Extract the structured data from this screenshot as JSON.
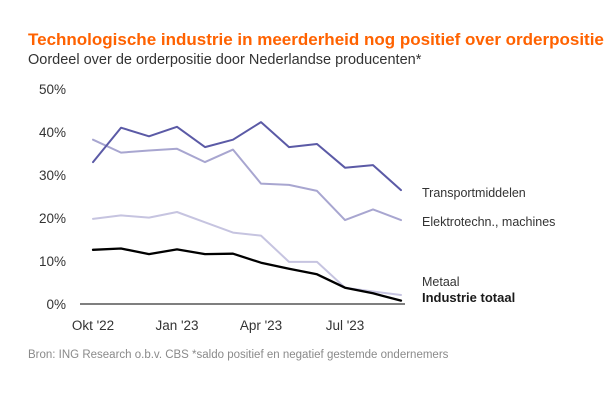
{
  "header": {
    "title": "Technologische industrie in meerderheid nog positief over orderpositie",
    "subtitle": "Oordeel over de orderpositie door Nederlandse producenten*"
  },
  "footer": {
    "source": "Bron: ING Research o.b.v. CBS   *saldo positief en negatief gestemde ondernemers"
  },
  "chart_data": {
    "type": "line",
    "x": [
      "Okt '22",
      "Nov '22",
      "Dec '22",
      "Jan '23",
      "Feb '23",
      "Mrt '23",
      "Apr '23",
      "Mei '23",
      "Jun '23",
      "Jul '23",
      "Aug '23",
      "Sep '23"
    ],
    "xticks": [
      "Okt '22",
      "Jan '23",
      "Apr '23",
      "Jul '23"
    ],
    "yticks": [
      "0%",
      "10%",
      "20%",
      "30%",
      "40%",
      "50%"
    ],
    "ylim": [
      0,
      50
    ],
    "series": [
      {
        "name": "Transportmiddelen",
        "color": "#5b5aa6",
        "values": [
          33,
          41,
          39,
          41.2,
          36.5,
          38.2,
          42.3,
          36.5,
          37.2,
          31.7,
          32.3,
          26.5
        ]
      },
      {
        "name": "Elektrotechn., machines",
        "color": "#a8a6d0",
        "values": [
          38.2,
          35.2,
          35.7,
          36.1,
          33,
          35.9,
          28,
          27.7,
          26.3,
          19.5,
          22,
          19.5
        ]
      },
      {
        "name": "Metaal",
        "color": "#c6c4e0",
        "values": [
          19.8,
          20.6,
          20.1,
          21.4,
          19,
          16.6,
          15.9,
          9.8,
          9.8,
          3.8,
          2.9,
          2.1
        ]
      },
      {
        "name": "Industrie totaal",
        "color": "#000000",
        "values": [
          12.6,
          12.9,
          11.6,
          12.7,
          11.6,
          11.7,
          9.6,
          8.2,
          6.9,
          3.8,
          2.5,
          0.8
        ]
      }
    ]
  }
}
